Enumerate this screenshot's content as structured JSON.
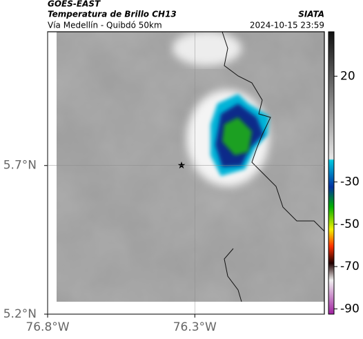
{
  "header": {
    "source": "GOES-EAST",
    "product": "Temperatura de Brillo CH13",
    "route": "Vía Medellín - Quibdó 50km",
    "organization": "SIATA",
    "timestamp": "2024-10-15 23:59"
  },
  "map": {
    "lat_range": [
      5.2,
      6.15
    ],
    "lon_range": [
      -76.8,
      -75.86
    ],
    "lat_ticks": [
      {
        "value": 5.7,
        "label": "5.7°N"
      },
      {
        "value": 5.2,
        "label": "5.2°N"
      }
    ],
    "lon_ticks": [
      {
        "value": -76.8,
        "label": "76.8°W"
      },
      {
        "value": -76.3,
        "label": "76.3°W"
      }
    ]
  },
  "colorbar": {
    "range": [
      -92.5,
      41
    ],
    "ticks": [
      20,
      -30,
      -50,
      -70,
      -90
    ]
  }
}
